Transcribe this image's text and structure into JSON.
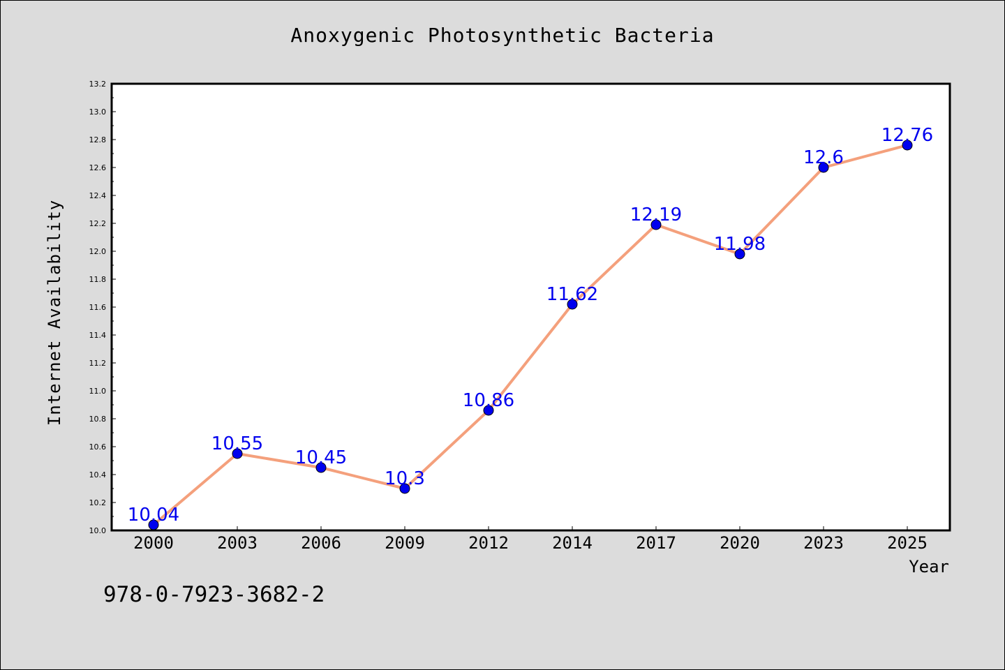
{
  "chart_data": {
    "type": "line",
    "title": "Anoxygenic Photosynthetic Bacteria",
    "xlabel": "Year",
    "ylabel": "Internet Availability",
    "categories": [
      "2000",
      "2003",
      "2006",
      "2009",
      "2012",
      "2014",
      "2017",
      "2020",
      "2023",
      "2025"
    ],
    "series": [
      {
        "values": [
          10.04,
          10.55,
          10.45,
          10.3,
          10.86,
          11.62,
          12.19,
          11.98,
          12.6,
          12.76
        ],
        "data_labels": [
          "10.04",
          "10.55",
          "10.45",
          "10.3",
          "10.86",
          "11.62",
          "12.19",
          "11.98",
          "12.6",
          "12.76"
        ],
        "line_color": "#f4a07c",
        "marker_color": "#0000ee"
      }
    ],
    "ylim": [
      10.0,
      13.2
    ],
    "yticks": [
      "10.0",
      "10.2",
      "10.4",
      "10.6",
      "10.8",
      "11.0",
      "11.2",
      "11.4",
      "11.6",
      "11.8",
      "12.0",
      "12.2",
      "12.4",
      "12.6",
      "12.8",
      "13.0",
      "13.2"
    ],
    "grid": false,
    "label_color": "#0000ee"
  },
  "footer": {
    "isbn": "978-0-7923-3682-2"
  }
}
